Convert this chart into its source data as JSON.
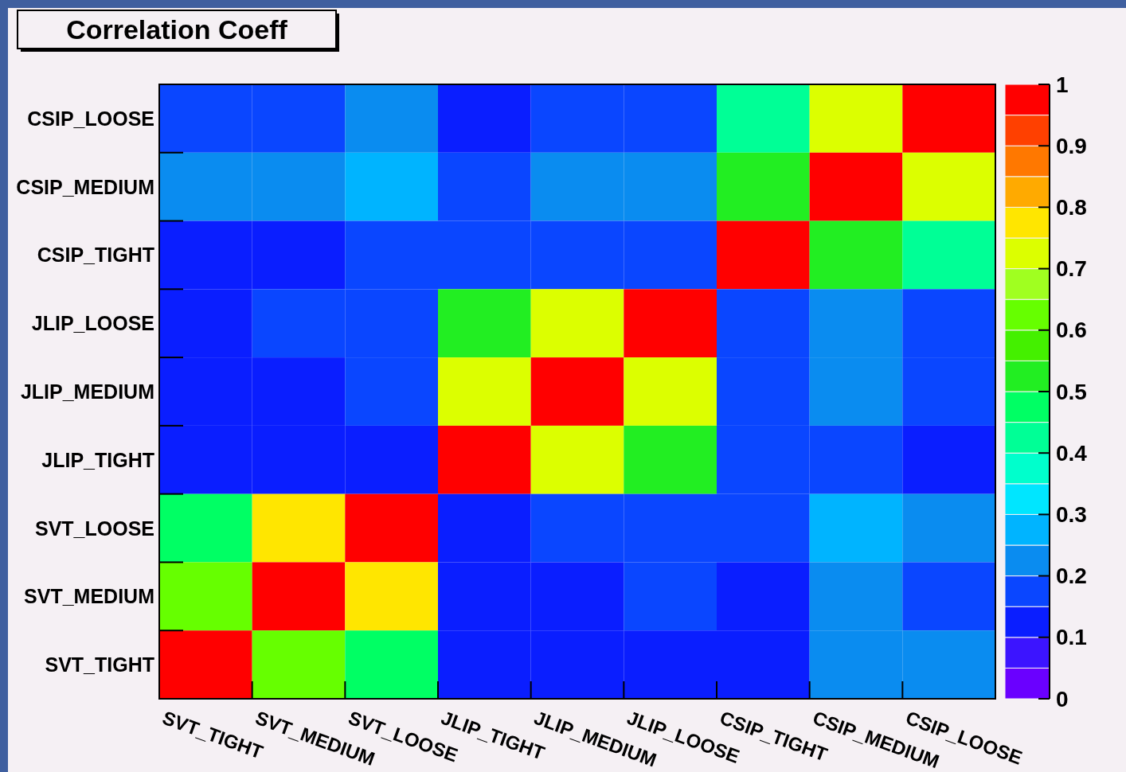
{
  "chart_data": {
    "type": "heatmap",
    "title": "Correlation Coeff",
    "categories": [
      "SVT_TIGHT",
      "SVT_MEDIUM",
      "SVT_LOOSE",
      "JLIP_TIGHT",
      "JLIP_MEDIUM",
      "JLIP_LOOSE",
      "CSIP_TIGHT",
      "CSIP_MEDIUM",
      "CSIP_LOOSE"
    ],
    "y_categories": [
      "CSIP_LOOSE",
      "CSIP_MEDIUM",
      "CSIP_TIGHT",
      "JLIP_LOOSE",
      "JLIP_MEDIUM",
      "JLIP_TIGHT",
      "SVT_LOOSE",
      "SVT_MEDIUM",
      "SVT_TIGHT"
    ],
    "cells": [
      [
        0.175,
        0.175,
        0.225,
        0.125,
        0.175,
        0.175,
        0.425,
        0.725,
        1
      ],
      [
        0.225,
        0.225,
        0.275,
        0.175,
        0.225,
        0.225,
        0.525,
        1,
        0.725
      ],
      [
        0.125,
        0.125,
        0.175,
        0.175,
        0.175,
        0.175,
        1,
        0.525,
        0.425
      ],
      [
        0.125,
        0.175,
        0.175,
        0.525,
        0.725,
        1,
        0.175,
        0.225,
        0.175
      ],
      [
        0.125,
        0.125,
        0.175,
        0.725,
        1,
        0.725,
        0.175,
        0.225,
        0.175
      ],
      [
        0.125,
        0.125,
        0.125,
        1,
        0.725,
        0.525,
        0.175,
        0.175,
        0.125
      ],
      [
        0.475,
        0.775,
        1,
        0.125,
        0.175,
        0.175,
        0.175,
        0.275,
        0.225
      ],
      [
        0.625,
        1,
        0.775,
        0.125,
        0.125,
        0.175,
        0.125,
        0.225,
        0.175
      ],
      [
        1,
        0.625,
        0.475,
        0.125,
        0.125,
        0.125,
        0.125,
        0.225,
        0.225
      ]
    ],
    "clim": [
      0,
      1
    ],
    "cticks": [
      0,
      0.1,
      0.2,
      0.3,
      0.4,
      0.5,
      0.6,
      0.7,
      0.8,
      0.9,
      1
    ]
  }
}
